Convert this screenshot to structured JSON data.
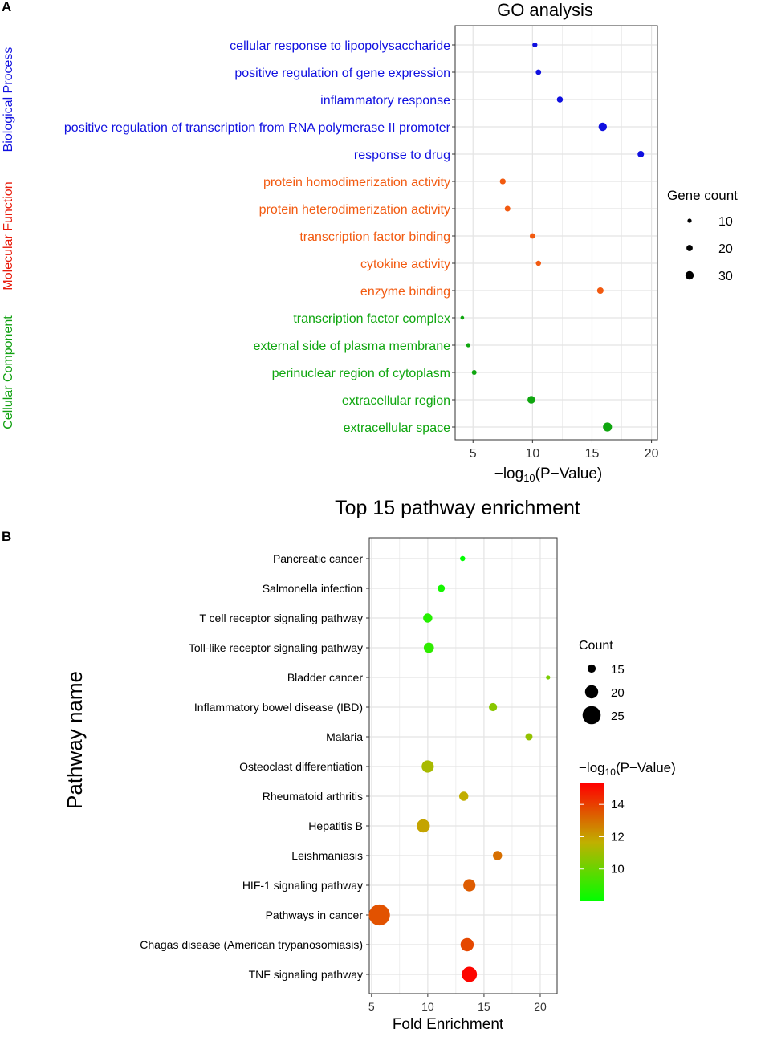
{
  "panel_a_label": "A",
  "panel_b_label": "B",
  "colors": {
    "bp": "#1010e0",
    "mf": "#f25a10",
    "cc": "#0fa60f",
    "bp_label": "#1010e0",
    "mf_label": "#e81a0a",
    "cc_label": "#10a010",
    "grid": "#e4e4e4",
    "axis": "#333333"
  },
  "chart_data": [
    {
      "type": "scatter",
      "title": "GO analysis",
      "xlabel": "−log₁₀(P−Value)",
      "xlim": [
        3.5,
        20.5
      ],
      "xticks": [
        5,
        10,
        15,
        20
      ],
      "grid": true,
      "categories": [
        {
          "name": "Biological Process",
          "color_key": "bp"
        },
        {
          "name": "Molecular Function",
          "color_key": "mf"
        },
        {
          "name": "Cellular Component",
          "color_key": "cc"
        }
      ],
      "terms": [
        {
          "term": "cellular response to lipopolysaccharide",
          "category": "Biological Process",
          "x": 10.2,
          "count": 14
        },
        {
          "term": "positive regulation of gene expression",
          "category": "Biological Process",
          "x": 10.5,
          "count": 16
        },
        {
          "term": "inflammatory response",
          "category": "Biological Process",
          "x": 12.3,
          "count": 19
        },
        {
          "term": "positive regulation of transcription from RNA polymerase II promoter",
          "category": "Biological Process",
          "x": 15.9,
          "count": 30
        },
        {
          "term": "response to drug",
          "category": "Biological Process",
          "x": 19.1,
          "count": 21
        },
        {
          "term": "protein homodimerization activity",
          "category": "Molecular Function",
          "x": 7.5,
          "count": 18
        },
        {
          "term": "protein heterodimerization activity",
          "category": "Molecular Function",
          "x": 7.9,
          "count": 17
        },
        {
          "term": "transcription factor binding",
          "category": "Molecular Function",
          "x": 10.0,
          "count": 16
        },
        {
          "term": "cytokine activity",
          "category": "Molecular Function",
          "x": 10.5,
          "count": 15
        },
        {
          "term": "enzyme binding",
          "category": "Molecular Function",
          "x": 15.7,
          "count": 21
        },
        {
          "term": "transcription factor complex",
          "category": "Cellular Component",
          "x": 4.1,
          "count": 8
        },
        {
          "term": "external side of plasma membrane",
          "category": "Cellular Component",
          "x": 4.6,
          "count": 10
        },
        {
          "term": "perinuclear region of cytoplasm",
          "category": "Cellular Component",
          "x": 5.1,
          "count": 13
        },
        {
          "term": "extracellular region",
          "category": "Cellular Component",
          "x": 9.9,
          "count": 27
        },
        {
          "term": "extracellular space",
          "category": "Cellular Component",
          "x": 16.3,
          "count": 33
        }
      ],
      "legend": {
        "title": "Gene count",
        "sizes": [
          10,
          20,
          30
        ],
        "labels": [
          "10",
          "20",
          "30"
        ],
        "position": "right"
      }
    },
    {
      "type": "scatter",
      "title": "Top 15 pathway enrichment",
      "xlabel": "Fold Enrichment",
      "ylabel": "Pathway name",
      "xlim": [
        4.8,
        21.5
      ],
      "xticks": [
        5,
        10,
        15,
        20
      ],
      "grid": true,
      "pathways": [
        {
          "name": "Pancreatic cancer",
          "x": 13.1,
          "count": 12,
          "p": 8.0
        },
        {
          "name": "Salmonella infection",
          "x": 11.2,
          "count": 14,
          "p": 8.4
        },
        {
          "name": "T cell receptor signaling pathway",
          "x": 10.0,
          "count": 16,
          "p": 8.7
        },
        {
          "name": "Toll-like receptor signaling pathway",
          "x": 10.1,
          "count": 17,
          "p": 8.9
        },
        {
          "name": "Bladder cancer",
          "x": 20.7,
          "count": 11,
          "p": 10.3
        },
        {
          "name": "Inflammatory bowel disease (IBD)",
          "x": 15.8,
          "count": 15,
          "p": 10.6
        },
        {
          "name": "Malaria",
          "x": 19.0,
          "count": 14,
          "p": 10.8
        },
        {
          "name": "Osteoclast differentiation",
          "x": 10.0,
          "count": 19,
          "p": 11.2
        },
        {
          "name": "Rheumatoid arthritis",
          "x": 13.2,
          "count": 16,
          "p": 11.7
        },
        {
          "name": "Hepatitis B",
          "x": 9.6,
          "count": 20,
          "p": 11.9
        },
        {
          "name": "Leishmaniasis",
          "x": 16.2,
          "count": 16,
          "p": 13.0
        },
        {
          "name": "HIF-1 signaling pathway",
          "x": 13.7,
          "count": 19,
          "p": 13.4
        },
        {
          "name": "Pathways in cancer",
          "x": 5.7,
          "count": 28,
          "p": 13.6
        },
        {
          "name": "Chagas disease (American trypanosomiasis)",
          "x": 13.5,
          "count": 20,
          "p": 13.8
        },
        {
          "name": "TNF signaling pathway",
          "x": 13.7,
          "count": 22,
          "p": 15.2
        }
      ],
      "size_legend": {
        "title": "Count",
        "sizes": [
          15,
          20,
          25
        ],
        "labels": [
          "15",
          "20",
          "25"
        ]
      },
      "color_legend": {
        "title_prefix": "−log",
        "title_sub": "10",
        "title_suffix": "(P−Value)",
        "range": [
          8.0,
          15.3
        ],
        "ticks": [
          10,
          12,
          14
        ],
        "tick_labels": [
          "10",
          "12",
          "14"
        ],
        "low_color": "#00ff00",
        "high_color": "#ff0000"
      }
    }
  ]
}
